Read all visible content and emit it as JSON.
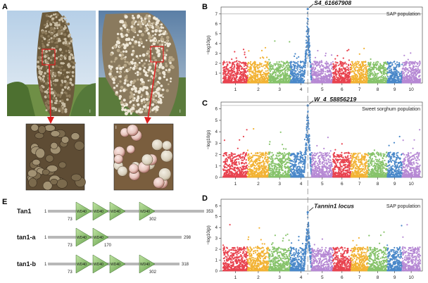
{
  "panels": {
    "A": "A",
    "B": "B",
    "C": "C",
    "D": "D",
    "E": "E"
  },
  "photos": {
    "scale_label_left": "I",
    "scale_label_right": "I",
    "inset_label": "I"
  },
  "chart_data": [
    {
      "type": "scatter",
      "panel": "B",
      "title": "SAP population",
      "annotation": "S4_61667908",
      "ylabel": "−log10(p)",
      "yticks": [
        1,
        2,
        3,
        4,
        5,
        6,
        7
      ],
      "ylim": [
        0,
        7.7
      ],
      "threshold": 7.0,
      "categories": [
        "1",
        "2",
        "3",
        "4",
        "5",
        "6",
        "7",
        "8",
        "9",
        "10"
      ],
      "peak_chr": 4,
      "peak_value": 7.5
    },
    {
      "type": "scatter",
      "panel": "C",
      "title": "Sweet sorghum population",
      "annotation": "W_4_58856219",
      "ylabel": "−log10(p)",
      "yticks": [
        0,
        1,
        2,
        3,
        4,
        5,
        6
      ],
      "ylim": [
        0,
        6.6
      ],
      "threshold": 6.3,
      "categories": [
        "1",
        "2",
        "3",
        "4",
        "5",
        "6",
        "7",
        "8",
        "9",
        "10"
      ],
      "peak_chr": 4,
      "peak_value": 6.3
    },
    {
      "type": "scatter",
      "panel": "D",
      "title": "SAP population",
      "annotation": "Tannin1 locus",
      "ylabel": "−log10(p)",
      "yticks": [
        0,
        1,
        2,
        3,
        4,
        5,
        6
      ],
      "ylim": [
        0,
        6.6
      ],
      "threshold": null,
      "categories": [
        "1",
        "2",
        "3",
        "4",
        "5",
        "6",
        "7",
        "8",
        "9",
        "10"
      ],
      "peak_chr": 4,
      "peak_value": 5.4
    }
  ],
  "chrom_colors": [
    "#e8434f",
    "#f2b233",
    "#87c36b",
    "#4a88c9",
    "#b689d4",
    "#e8434f",
    "#f2b233",
    "#87c36b",
    "#4a88c9",
    "#b689d4"
  ],
  "genes": [
    {
      "name": "Tan1",
      "start": "1",
      "end": "353",
      "marks": [
        "73",
        "302"
      ]
    },
    {
      "name": "tan1-a",
      "start": "1",
      "end": "298",
      "marks": [
        "73",
        "170"
      ]
    },
    {
      "name": "tan1-b",
      "start": "1",
      "end": "318",
      "marks": [
        "73",
        "302"
      ]
    }
  ],
  "domain_label": "WD40"
}
